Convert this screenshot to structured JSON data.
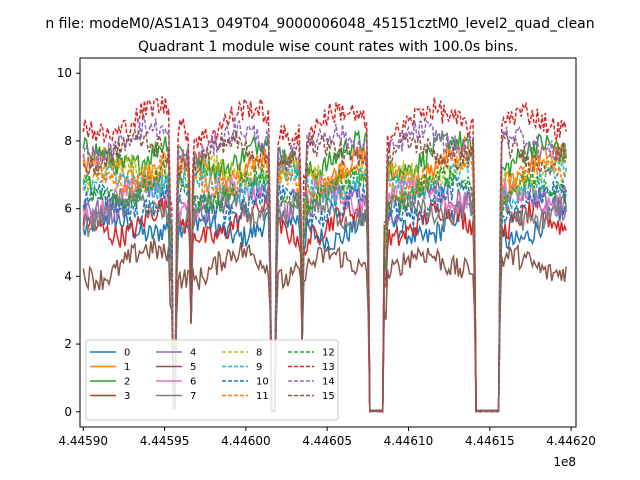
{
  "chart_data": {
    "type": "line",
    "suptitle": "n file: modeM0/AS1A13_049T04_9000006048_45151cztM0_level2_quad_clean",
    "title": "Quadrant 1 module wise count rates with 100.0s bins.",
    "xlabel": "",
    "ylabel": "",
    "x_offset_label": "1e8",
    "xlim": [
      4.445898,
      4.446203
    ],
    "ylim": [
      -0.45,
      10.45
    ],
    "xticks": [
      4.4459,
      4.44595,
      4.446,
      4.44605,
      4.4461,
      4.44615,
      4.4462
    ],
    "xtick_labels": [
      "4.44590",
      "4.44595",
      "4.44600",
      "4.44605",
      "4.44610",
      "4.44615",
      "4.44620"
    ],
    "yticks": [
      0,
      2,
      4,
      6,
      8,
      10
    ],
    "ytick_labels": [
      "0",
      "2",
      "4",
      "6",
      "8",
      "10"
    ],
    "time_range": [
      4.4459,
      4.446197
    ],
    "gaps": [
      {
        "start": 4.4459545,
        "end": 4.4459565,
        "min": 0.1
      },
      {
        "start": 4.445966,
        "end": 4.445967,
        "min": 2.6
      },
      {
        "start": 4.4460155,
        "end": 4.446018,
        "min": 0.0
      },
      {
        "start": 4.446034,
        "end": 4.4460355,
        "min": 2.1
      },
      {
        "start": 4.4460755,
        "end": 4.446085,
        "min": 0.0
      },
      {
        "start": 4.446141,
        "end": 4.446156,
        "min": 0.0
      }
    ],
    "series": [
      {
        "name": "0",
        "color": "#1f77b4",
        "dash": "solid",
        "level": 5.5
      },
      {
        "name": "1",
        "color": "#ff7f0e",
        "dash": "solid",
        "level": 7.3
      },
      {
        "name": "2",
        "color": "#2ca02c",
        "dash": "solid",
        "level": 7.6
      },
      {
        "name": "3",
        "color": "#d62728",
        "dash": "solid",
        "level": 5.6
      },
      {
        "name": "4",
        "color": "#9467bd",
        "dash": "solid",
        "level": 6.3
      },
      {
        "name": "5",
        "color": "#8c564b",
        "dash": "solid",
        "level": 4.4
      },
      {
        "name": "6",
        "color": "#e377c2",
        "dash": "solid",
        "level": 6.4
      },
      {
        "name": "7",
        "color": "#7f7f7f",
        "dash": "solid",
        "level": 6.0
      },
      {
        "name": "8",
        "color": "#bcbd22",
        "dash": "dashed",
        "level": 7.1
      },
      {
        "name": "9",
        "color": "#17becf",
        "dash": "dashed",
        "level": 6.8
      },
      {
        "name": "10",
        "color": "#1f77b4",
        "dash": "dashed",
        "level": 6.2
      },
      {
        "name": "11",
        "color": "#ff7f0e",
        "dash": "dashed",
        "level": 7.0
      },
      {
        "name": "12",
        "color": "#2ca02c",
        "dash": "dashed",
        "level": 6.6
      },
      {
        "name": "13",
        "color": "#d62728",
        "dash": "dashed",
        "level": 8.6
      },
      {
        "name": "14",
        "color": "#9467bd",
        "dash": "dashed",
        "level": 8.0
      },
      {
        "name": "15",
        "color": "#8c564b",
        "dash": "dashed",
        "level": 7.7
      }
    ],
    "legend": {
      "location": "lower left",
      "columns": 4
    }
  }
}
